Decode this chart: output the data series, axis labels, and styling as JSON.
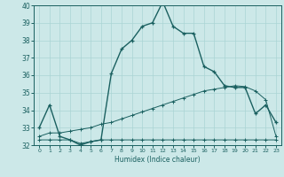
{
  "xlabel": "Humidex (Indice chaleur)",
  "xlim": [
    -0.5,
    23.5
  ],
  "ylim": [
    32,
    40
  ],
  "yticks": [
    32,
    33,
    34,
    35,
    36,
    37,
    38,
    39,
    40
  ],
  "xticks": [
    0,
    1,
    2,
    3,
    4,
    5,
    6,
    7,
    8,
    9,
    10,
    11,
    12,
    13,
    14,
    15,
    16,
    17,
    18,
    19,
    20,
    21,
    22,
    23
  ],
  "bg_color": "#cce8e8",
  "grid_color": "#aad4d4",
  "line_color": "#1a6060",
  "x": [
    0,
    1,
    2,
    3,
    4,
    5,
    6,
    7,
    8,
    9,
    10,
    11,
    12,
    13,
    14,
    15,
    16,
    17,
    18,
    19,
    20,
    21,
    22,
    23
  ],
  "line1": [
    33.0,
    34.3,
    32.5,
    32.3,
    32.0,
    32.2,
    32.3,
    36.1,
    37.5,
    38.0,
    38.8,
    39.0,
    40.2,
    38.8,
    38.4,
    38.4,
    36.5,
    36.2,
    35.4,
    35.3,
    35.3,
    33.8,
    34.3,
    33.3
  ],
  "line2": [
    32.3,
    32.3,
    32.3,
    32.3,
    32.1,
    32.2,
    32.3,
    32.3,
    32.3,
    32.3,
    32.3,
    32.3,
    32.3,
    32.3,
    32.3,
    32.3,
    32.3,
    32.3,
    32.3,
    32.3,
    32.3,
    32.3,
    32.3,
    32.3
  ],
  "line3": [
    32.5,
    32.7,
    32.7,
    32.8,
    32.9,
    33.0,
    33.2,
    33.3,
    33.5,
    33.7,
    33.9,
    34.1,
    34.3,
    34.5,
    34.7,
    34.9,
    35.1,
    35.2,
    35.3,
    35.4,
    35.35,
    35.1,
    34.6,
    32.5
  ]
}
